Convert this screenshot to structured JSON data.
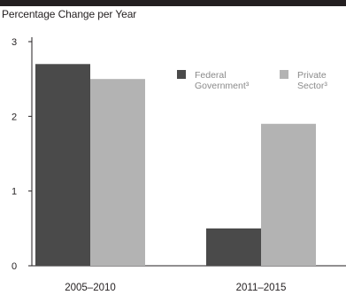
{
  "header": {
    "subtitle": "Percentage Change per Year"
  },
  "chart_data": {
    "type": "bar",
    "categories": [
      "2005–2010",
      "2011–2015"
    ],
    "series": [
      {
        "name": "Federal Government³",
        "name_lines": [
          "Federal",
          "Government³"
        ],
        "values": [
          2.7,
          0.5
        ],
        "color": "#4a4a4a"
      },
      {
        "name": "Private Sector³",
        "name_lines": [
          "Private",
          "Sector³"
        ],
        "values": [
          2.5,
          1.9
        ],
        "color": "#b3b3b3"
      }
    ],
    "yticks": [
      "0",
      "1",
      "2",
      "3"
    ],
    "ylim": [
      0,
      3
    ],
    "grid": false,
    "legend_position": "top-right"
  }
}
